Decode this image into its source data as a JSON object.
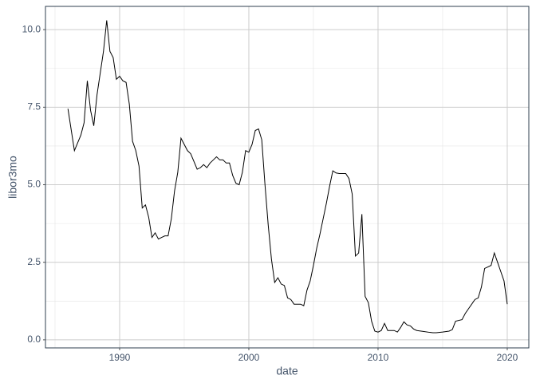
{
  "chart_data": {
    "type": "line",
    "x_label": "date",
    "y_label": "libor3mo",
    "x": [
      1986.0,
      1986.5,
      1987.0,
      1987.25,
      1987.5,
      1987.75,
      1988.0,
      1988.25,
      1988.5,
      1988.75,
      1989.0,
      1989.25,
      1989.5,
      1989.75,
      1990.0,
      1990.25,
      1990.5,
      1990.75,
      1991.0,
      1991.25,
      1991.5,
      1991.75,
      1992.0,
      1992.25,
      1992.5,
      1992.75,
      1993.0,
      1993.25,
      1993.5,
      1993.75,
      1994.0,
      1994.25,
      1994.5,
      1994.75,
      1995.0,
      1995.25,
      1995.5,
      1995.75,
      1996.0,
      1996.25,
      1996.5,
      1996.75,
      1997.0,
      1997.25,
      1997.5,
      1997.75,
      1998.0,
      1998.25,
      1998.5,
      1998.75,
      1999.0,
      1999.25,
      1999.5,
      1999.75,
      2000.0,
      2000.25,
      2000.5,
      2000.75,
      2001.0,
      2001.25,
      2001.5,
      2001.75,
      2002.0,
      2002.25,
      2002.5,
      2002.75,
      2003.0,
      2003.25,
      2003.5,
      2003.75,
      2004.0,
      2004.25,
      2004.5,
      2004.75,
      2005.0,
      2005.25,
      2005.5,
      2005.75,
      2006.0,
      2006.25,
      2006.5,
      2006.75,
      2007.0,
      2007.25,
      2007.5,
      2007.75,
      2008.0,
      2008.25,
      2008.5,
      2008.75,
      2009.0,
      2009.25,
      2009.5,
      2009.75,
      2010.0,
      2010.25,
      2010.5,
      2010.75,
      2011.0,
      2011.25,
      2011.5,
      2011.75,
      2012.0,
      2012.25,
      2012.5,
      2012.75,
      2013.0,
      2013.5,
      2014.0,
      2014.25,
      2014.5,
      2015.0,
      2015.5,
      2015.75,
      2016.0,
      2016.5,
      2016.75,
      2017.0,
      2017.25,
      2017.5,
      2017.75,
      2018.0,
      2018.25,
      2018.5,
      2018.75,
      2019.0,
      2019.25,
      2019.5,
      2019.75,
      2020.0
    ],
    "values": [
      7.45,
      6.1,
      6.6,
      7.0,
      8.35,
      7.4,
      6.9,
      7.9,
      8.6,
      9.3,
      10.3,
      9.3,
      9.1,
      8.4,
      8.5,
      8.35,
      8.3,
      7.6,
      6.4,
      6.1,
      5.6,
      4.25,
      4.35,
      3.95,
      3.3,
      3.45,
      3.25,
      3.3,
      3.35,
      3.35,
      3.9,
      4.8,
      5.4,
      6.5,
      6.3,
      6.1,
      6.0,
      5.75,
      5.5,
      5.55,
      5.65,
      5.55,
      5.7,
      5.8,
      5.9,
      5.8,
      5.8,
      5.7,
      5.7,
      5.3,
      5.05,
      5.0,
      5.4,
      6.1,
      6.05,
      6.3,
      6.75,
      6.8,
      6.45,
      5.0,
      3.7,
      2.6,
      1.85,
      2.0,
      1.8,
      1.75,
      1.35,
      1.3,
      1.15,
      1.15,
      1.15,
      1.1,
      1.6,
      1.9,
      2.4,
      2.95,
      3.4,
      3.9,
      4.4,
      4.95,
      5.45,
      5.38,
      5.36,
      5.36,
      5.36,
      5.2,
      4.7,
      2.7,
      2.8,
      4.05,
      1.4,
      1.2,
      0.6,
      0.28,
      0.25,
      0.3,
      0.53,
      0.3,
      0.3,
      0.3,
      0.25,
      0.4,
      0.58,
      0.48,
      0.45,
      0.35,
      0.3,
      0.27,
      0.24,
      0.23,
      0.23,
      0.25,
      0.28,
      0.33,
      0.6,
      0.65,
      0.85,
      1.0,
      1.15,
      1.3,
      1.35,
      1.7,
      2.3,
      2.35,
      2.4,
      2.8,
      2.5,
      2.2,
      1.9,
      1.15
    ],
    "color": "#000000",
    "xlim": [
      1984.26,
      2021.67
    ],
    "ylim": [
      -0.26,
      10.75
    ],
    "xticks": [
      1990,
      2000,
      2010,
      2020
    ],
    "yticks": [
      {
        "value": 0,
        "label": "0.0"
      },
      {
        "value": 2.5,
        "label": "2.5"
      },
      {
        "value": 5,
        "label": "5.0"
      },
      {
        "value": 7.5,
        "label": "7.5"
      },
      {
        "value": 10,
        "label": "10.0"
      }
    ],
    "x_minor_grid": [
      1985,
      1995,
      2005,
      2015
    ],
    "y_minor_grid": [
      1.25,
      3.75,
      6.25,
      8.75
    ],
    "grid": true
  }
}
